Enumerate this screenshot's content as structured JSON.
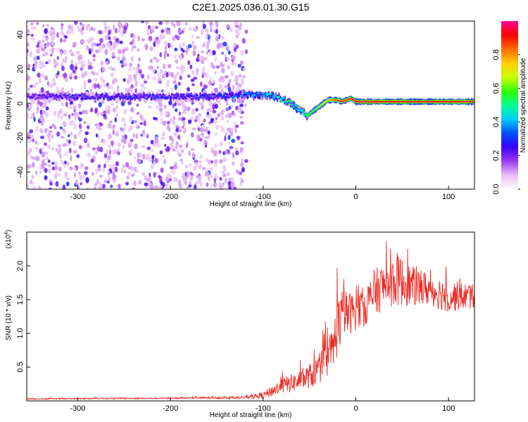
{
  "title": "C2E1.2025.036.01.30.G15",
  "chart_data": [
    {
      "type": "heatmap",
      "xlabel": "Height of straight line (km)",
      "ylabel": "Frequency (Hz)",
      "xlim": [
        -355,
        128
      ],
      "ylim": [
        -50,
        48
      ],
      "xticks": [
        -300,
        -200,
        -100,
        0,
        100
      ],
      "yticks": [
        -40,
        -20,
        0,
        20,
        40
      ],
      "colorbar": {
        "label": "Normalized spectral amplitude",
        "range": [
          0.0,
          1.0
        ],
        "ticks": [
          0.0,
          0.2,
          0.4,
          0.6,
          0.8
        ],
        "colormap": [
          "#ffffff",
          "#e7bdf8",
          "#9a3cf0",
          "#3a00ff",
          "#0050ff",
          "#00ccff",
          "#00ff90",
          "#33ff00",
          "#c8ff00",
          "#ffd000",
          "#ff6a00",
          "#ff0000",
          "#ff0090"
        ]
      },
      "ridge": {
        "x": [
          -355,
          -300,
          -250,
          -200,
          -150,
          -120,
          -100,
          -85,
          -70,
          -60,
          -52,
          -45,
          -40,
          -35,
          -30,
          -25,
          -20,
          -15,
          -10,
          -5,
          0,
          20,
          60,
          128
        ],
        "y": [
          4,
          4,
          4,
          4,
          4,
          5,
          5,
          4,
          0,
          -4,
          -7,
          -4,
          -2,
          0,
          2,
          2,
          2,
          1,
          2,
          3,
          1,
          1,
          1,
          1
        ],
        "peak_amplitude": [
          0.25,
          0.28,
          0.3,
          0.3,
          0.32,
          0.38,
          0.45,
          0.5,
          0.55,
          0.58,
          0.6,
          0.6,
          0.65,
          0.7,
          0.78,
          0.85,
          0.9,
          0.9,
          0.9,
          0.92,
          0.95,
          0.95,
          0.95,
          0.95
        ]
      },
      "noise_region": {
        "x": [
          -355,
          -118
        ],
        "y": [
          -50,
          48
        ],
        "amplitude": 0.15
      }
    },
    {
      "type": "line",
      "xlabel": "Height of straight line (km)",
      "ylabel": "SNR (10 * v/v)",
      "y_multiplier": "(x10",
      "y_multiplier_exp": "4",
      "xlim": [
        -355,
        128
      ],
      "ylim": [
        0,
        2.5
      ],
      "xticks": [
        -300,
        -200,
        -100,
        0,
        100
      ],
      "yticks": [
        0.5,
        1.0,
        1.5,
        2.0
      ],
      "color": "#ee2a24",
      "series": [
        {
          "envelope_x": [
            -355,
            -200,
            -120,
            -100,
            -80,
            -60,
            -45,
            -35,
            -25,
            -20,
            -15,
            -10,
            -5,
            0,
            10,
            20,
            30,
            45,
            60,
            80,
            100,
            115,
            128
          ],
          "envelope_y": [
            0.03,
            0.04,
            0.05,
            0.08,
            0.22,
            0.3,
            0.4,
            0.55,
            0.75,
            1.1,
            1.25,
            1.3,
            1.3,
            1.35,
            1.4,
            1.6,
            1.7,
            1.8,
            1.7,
            1.65,
            1.55,
            1.55,
            1.55
          ],
          "noise_amplitude": [
            0.01,
            0.01,
            0.02,
            0.05,
            0.12,
            0.15,
            0.2,
            0.25,
            0.35,
            0.45,
            0.4,
            0.35,
            0.3,
            0.3,
            0.3,
            0.35,
            0.35,
            0.4,
            0.3,
            0.25,
            0.25,
            0.2,
            0.2
          ]
        }
      ]
    }
  ]
}
